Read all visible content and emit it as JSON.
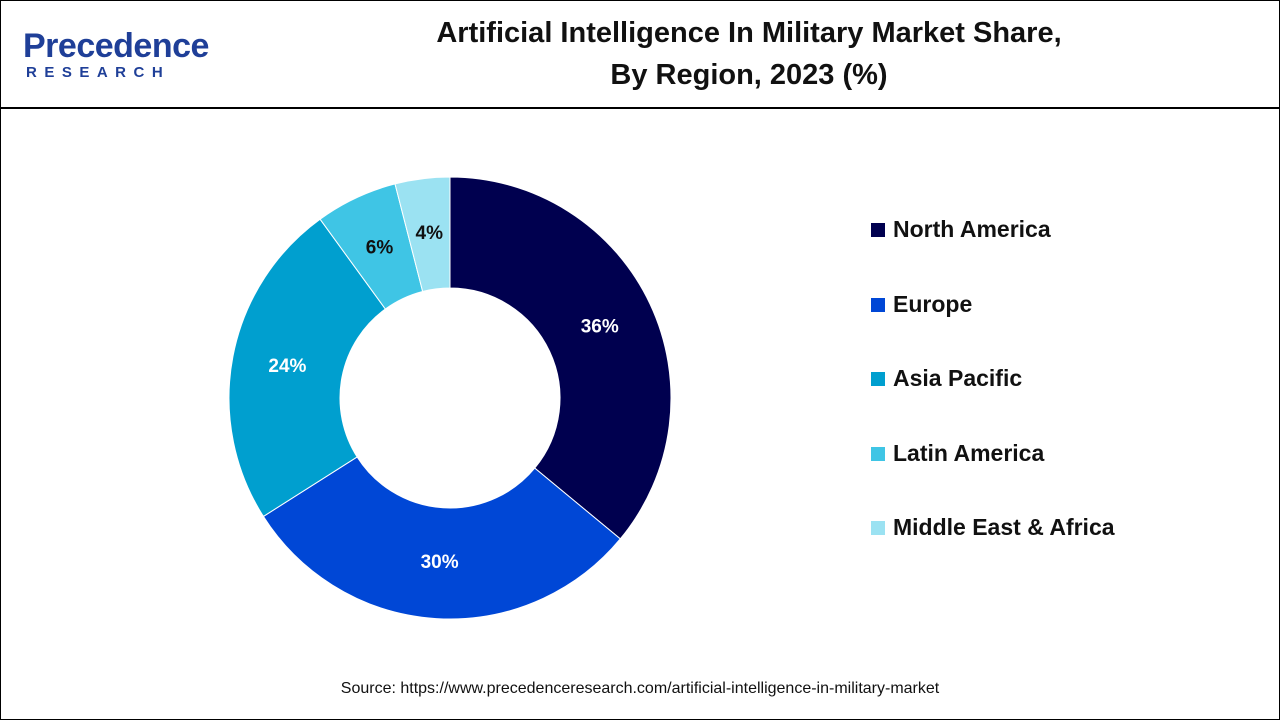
{
  "logo": {
    "name": "Precedence",
    "tagline": "RESEARCH"
  },
  "chart_data": {
    "type": "donut",
    "title": [
      "Artificial Intelligence In Military Market Share,",
      "By Region, 2023 (%)"
    ],
    "categories": [
      "North America",
      "Europe",
      "Asia Pacific",
      "Latin America",
      "Middle East & Africa"
    ],
    "values": [
      36,
      30,
      24,
      6,
      4
    ],
    "value_labels": [
      "36%",
      "30%",
      "24%",
      "6%",
      "4%"
    ],
    "colors": [
      "#00004f",
      "#0047d6",
      "#009fcf",
      "#3fc5e5",
      "#9be2f2"
    ],
    "source": "Source: https://www.precedenceresearch.com/artificial-intelligence-in-military-market"
  }
}
